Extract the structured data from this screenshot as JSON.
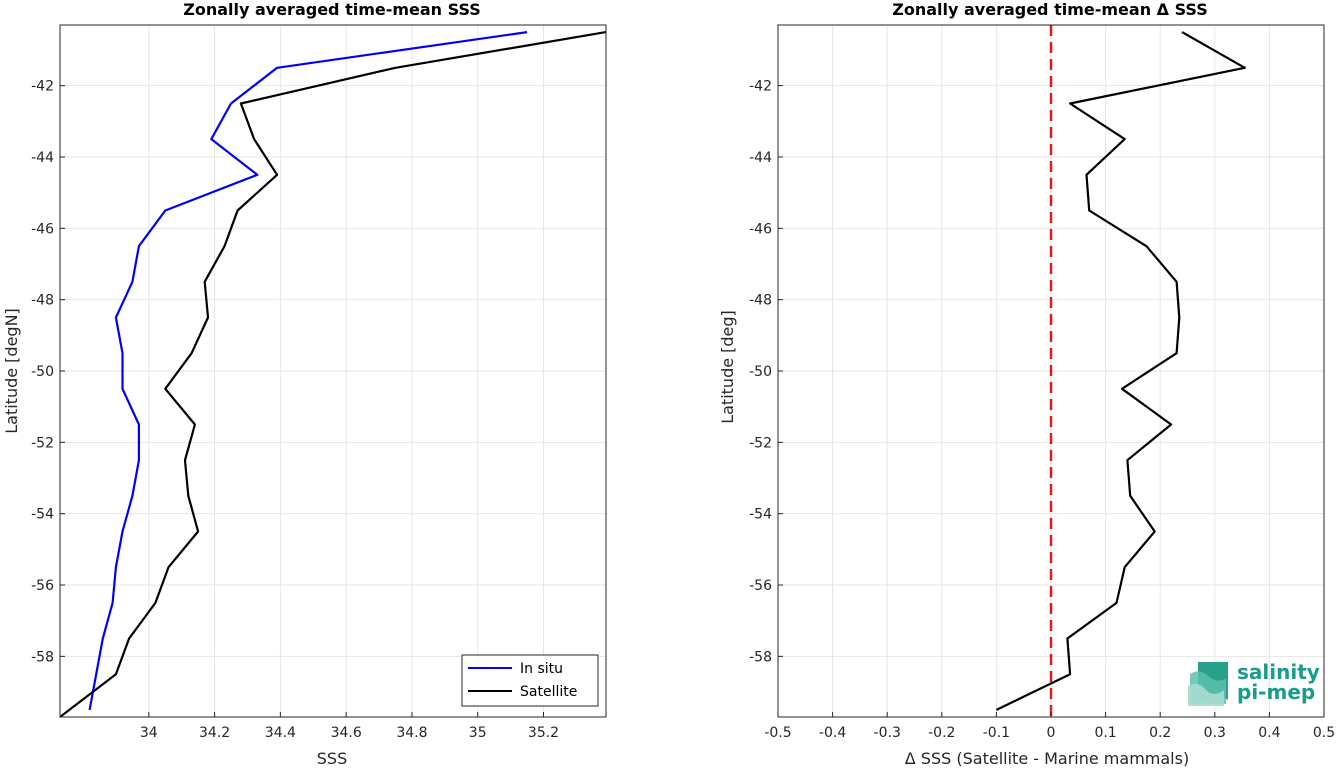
{
  "chart_data": [
    {
      "type": "line",
      "title": "Zonally averaged time-mean SSS",
      "xlabel": "SSS",
      "ylabel": "Latitude [degN]",
      "xlim": [
        33.73,
        35.39
      ],
      "ylim": [
        -59.7,
        -40.3
      ],
      "xticks": [
        "34",
        "34.2",
        "34.4",
        "34.6",
        "34.8",
        "35",
        "35.2"
      ],
      "xtick_values": [
        34,
        34.2,
        34.4,
        34.6,
        34.8,
        35,
        35.2
      ],
      "yticks": [
        "-42",
        "-44",
        "-46",
        "-48",
        "-50",
        "-52",
        "-54",
        "-56",
        "-58"
      ],
      "ytick_values": [
        -42,
        -44,
        -46,
        -48,
        -50,
        -52,
        -54,
        -56,
        -58
      ],
      "grid": true,
      "legend_position": "bottom-right",
      "series": [
        {
          "name": "In situ",
          "color": "#0000ff",
          "x": [
            35.15,
            34.39,
            34.25,
            34.19,
            34.33,
            34.05,
            33.97,
            33.95,
            33.9,
            33.92,
            33.92,
            33.97,
            33.97,
            33.95,
            33.92,
            33.9,
            33.89,
            33.86,
            33.82
          ],
          "y": [
            -40.5,
            -41.5,
            -42.5,
            -43.5,
            -44.5,
            -45.5,
            -46.5,
            -47.5,
            -48.5,
            -49.5,
            -50.5,
            -51.5,
            -52.5,
            -53.5,
            -54.5,
            -55.5,
            -56.5,
            -57.5,
            -59.5
          ]
        },
        {
          "name": "Satellite",
          "color": "#000000",
          "x": [
            35.39,
            34.75,
            34.28,
            34.32,
            34.39,
            34.27,
            34.23,
            34.17,
            34.18,
            34.13,
            34.05,
            34.14,
            34.11,
            34.12,
            34.15,
            34.06,
            34.02,
            33.94,
            33.9,
            33.73
          ],
          "y": [
            -40.5,
            -41.5,
            -42.5,
            -43.5,
            -44.5,
            -45.5,
            -46.5,
            -47.5,
            -48.5,
            -49.5,
            -50.5,
            -51.5,
            -52.5,
            -53.5,
            -54.5,
            -55.5,
            -56.5,
            -57.5,
            -58.5,
            -59.7
          ]
        }
      ]
    },
    {
      "type": "line",
      "title": "Zonally averaged time-mean Δ SSS",
      "xlabel": "Δ SSS (Satellite - Marine mammals)",
      "ylabel": "Latitude [deg]",
      "xlim": [
        -0.5,
        0.5
      ],
      "ylim": [
        -59.7,
        -40.3
      ],
      "xticks": [
        "-0.5",
        "-0.4",
        "-0.3",
        "-0.2",
        "-0.1",
        "0",
        "0.1",
        "0.2",
        "0.3",
        "0.4",
        "0.5"
      ],
      "xtick_values": [
        -0.5,
        -0.4,
        -0.3,
        -0.2,
        -0.1,
        0,
        0.1,
        0.2,
        0.3,
        0.4,
        0.5
      ],
      "yticks": [
        "-42",
        "-44",
        "-46",
        "-48",
        "-50",
        "-52",
        "-54",
        "-56",
        "-58"
      ],
      "ytick_values": [
        -42,
        -44,
        -46,
        -48,
        -50,
        -52,
        -54,
        -56,
        -58
      ],
      "grid": true,
      "reference_line": {
        "x": 0,
        "color": "#e31a1c",
        "style": "dashed"
      },
      "series": [
        {
          "color": "#000000",
          "x": [
            0.24,
            0.355,
            0.035,
            0.135,
            0.065,
            0.07,
            0.175,
            0.23,
            0.235,
            0.23,
            0.13,
            0.22,
            0.14,
            0.145,
            0.19,
            0.135,
            0.12,
            0.03,
            0.035,
            -0.1
          ],
          "y": [
            -40.5,
            -41.5,
            -42.5,
            -43.5,
            -44.5,
            -45.5,
            -46.5,
            -47.5,
            -48.5,
            -49.5,
            -50.5,
            -51.5,
            -52.5,
            -53.5,
            -54.5,
            -55.5,
            -56.5,
            -57.5,
            -58.5,
            -59.5
          ]
        }
      ]
    }
  ],
  "logo": {
    "line1": "salinity",
    "line2": "pi-mep",
    "color": "#1a9c8a"
  }
}
